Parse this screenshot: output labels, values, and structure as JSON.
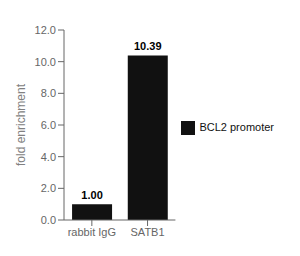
{
  "chart_data": {
    "type": "bar",
    "categories": [
      "rabbit IgG",
      "SATB1"
    ],
    "series": [
      {
        "name": "BCL2 promoter",
        "color": "#111111",
        "values": [
          1.0,
          10.39
        ],
        "value_labels": [
          "1.00",
          "10.39"
        ]
      }
    ],
    "ylabel": "fold enrichment",
    "ylim": [
      0,
      12.0
    ],
    "yticks": [
      {
        "value": 0.0,
        "label": "0.0"
      },
      {
        "value": 2.0,
        "label": "2.0"
      },
      {
        "value": 4.0,
        "label": "4.0"
      },
      {
        "value": 6.0,
        "label": "6.0"
      },
      {
        "value": 8.0,
        "label": "8.0"
      },
      {
        "value": 10.0,
        "label": "10.0"
      },
      {
        "value": 12.0,
        "label": "12.0"
      }
    ],
    "data_labels": true,
    "grid": false,
    "legend": "right"
  }
}
